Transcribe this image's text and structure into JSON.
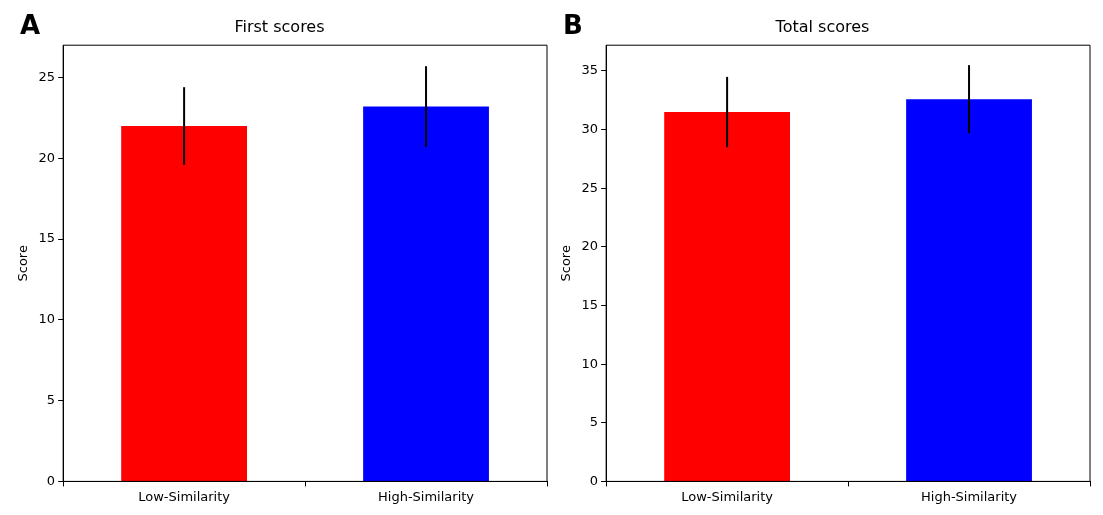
{
  "chart_data": [
    {
      "type": "bar",
      "title": "First scores",
      "ylabel": "Score",
      "annotations": [
        "A"
      ],
      "categories": [
        "Low-Similarity",
        "High-Similarity"
      ],
      "values": [
        22.0,
        23.2
      ],
      "errors": [
        2.4,
        2.5
      ],
      "colors": [
        "#ff0000",
        "#0000ff"
      ],
      "ylim": [
        0,
        27
      ],
      "yticks": [
        0,
        5,
        10,
        15,
        20,
        25
      ],
      "grid": false
    },
    {
      "type": "bar",
      "title": "Total scores",
      "ylabel": "Score",
      "annotations": [
        "B"
      ],
      "categories": [
        "Low-Similarity",
        "High-Similarity"
      ],
      "values": [
        31.5,
        32.6
      ],
      "errors": [
        3.0,
        2.9
      ],
      "colors": [
        "#ff0000",
        "#0000ff"
      ],
      "ylim": [
        0,
        37.2
      ],
      "yticks": [
        0,
        5,
        10,
        15,
        20,
        25,
        30,
        35
      ],
      "grid": false
    }
  ]
}
